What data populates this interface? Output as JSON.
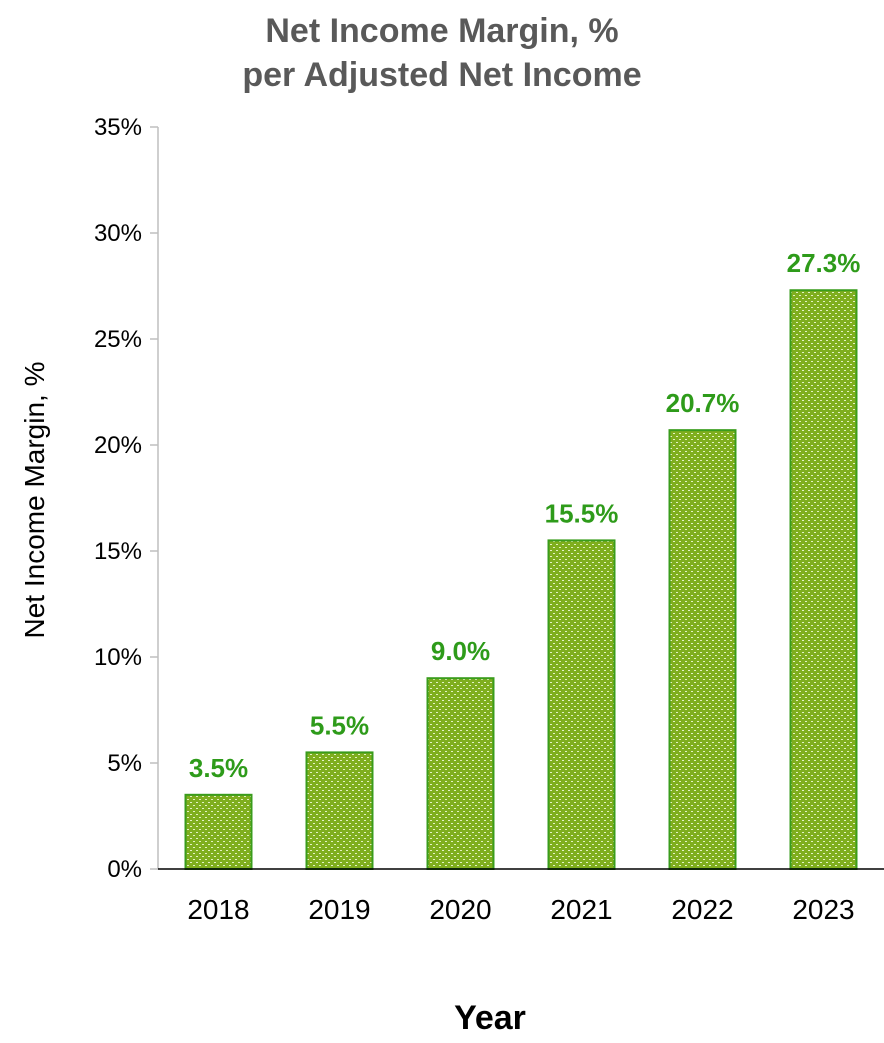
{
  "chart_data": {
    "type": "bar",
    "title": "Net Income Margin, %",
    "subtitle": "per Adjusted Net Income",
    "xlabel": "Year",
    "ylabel": "Net Income Margin, %",
    "categories": [
      "2018",
      "2019",
      "2020",
      "2021",
      "2022",
      "2023"
    ],
    "values": [
      3.5,
      5.5,
      9.0,
      15.5,
      20.7,
      27.3
    ],
    "data_labels": [
      "3.5%",
      "5.5%",
      "9.0%",
      "15.5%",
      "20.7%",
      "27.3%"
    ],
    "ylim": [
      0,
      35
    ],
    "yticks": [
      0,
      5,
      10,
      15,
      20,
      25,
      30,
      35
    ],
    "ytick_labels": [
      "0%",
      "5%",
      "10%",
      "15%",
      "20%",
      "25%",
      "30%",
      "35%"
    ],
    "grid": false,
    "legend": "none",
    "colors": {
      "bar_fill": "#7fae1e",
      "bar_pattern": "#e3f2c4",
      "bar_stroke": "#3a9c1c",
      "data_label": "#2e9b1a",
      "title": "#595959",
      "axis": "#bfbfbf"
    }
  }
}
